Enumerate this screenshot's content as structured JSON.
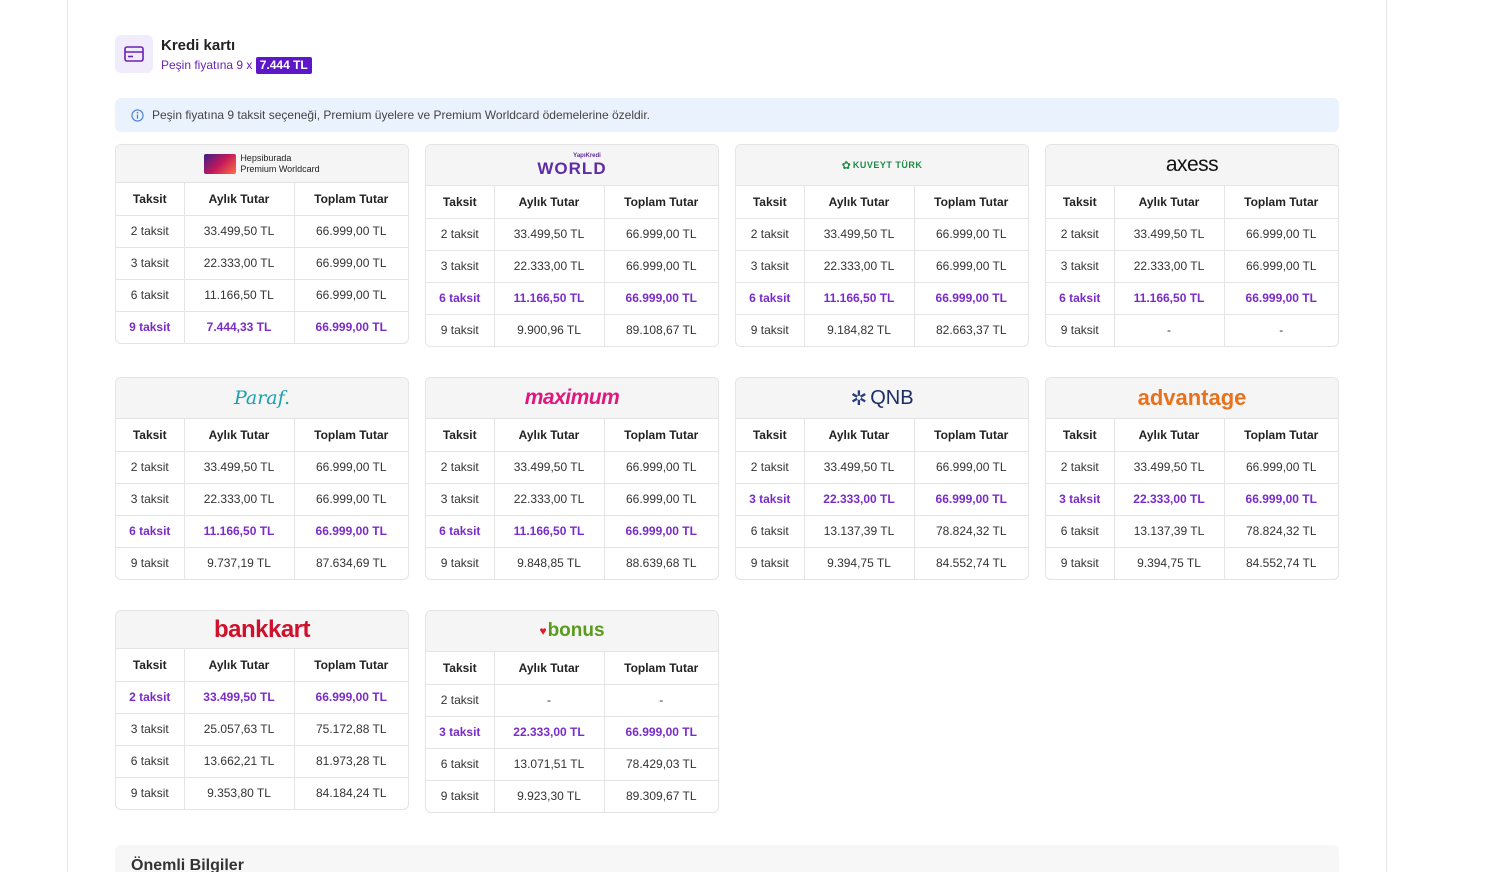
{
  "header": {
    "title": "Kredi kartı",
    "subtitle_prefix": "Peşin fiyatına 9 x",
    "subtitle_badge": "7.444 TL"
  },
  "info": {
    "text": "Peşin fiyatına 9 taksit seçeneği, Premium üyelere ve Premium Worldcard ödemelerine özeldir."
  },
  "columns": {
    "c1": "Taksit",
    "c2": "Aylık Tutar",
    "c3": "Toplam Tutar"
  },
  "cards": [
    {
      "name": "Hepsiburada Premium Worldcard",
      "logo_line1": "Hepsiburada",
      "logo_line2": "Premium Worldcard",
      "rows": [
        {
          "t": "2 taksit",
          "a": "33.499,50 TL",
          "s": "66.999,00 TL",
          "hl": false
        },
        {
          "t": "3 taksit",
          "a": "22.333,00 TL",
          "s": "66.999,00 TL",
          "hl": false
        },
        {
          "t": "6 taksit",
          "a": "11.166,50 TL",
          "s": "66.999,00 TL",
          "hl": false
        },
        {
          "t": "9 taksit",
          "a": "7.444,33 TL",
          "s": "66.999,00 TL",
          "hl": true
        }
      ]
    },
    {
      "name": "World",
      "logo_small": "YapıKredi",
      "logo_text": "WORLD",
      "rows": [
        {
          "t": "2 taksit",
          "a": "33.499,50 TL",
          "s": "66.999,00 TL",
          "hl": false
        },
        {
          "t": "3 taksit",
          "a": "22.333,00 TL",
          "s": "66.999,00 TL",
          "hl": false
        },
        {
          "t": "6 taksit",
          "a": "11.166,50 TL",
          "s": "66.999,00 TL",
          "hl": true
        },
        {
          "t": "9 taksit",
          "a": "9.900,96 TL",
          "s": "89.108,67 TL",
          "hl": false
        }
      ]
    },
    {
      "name": "KuveytTürk",
      "logo_text": "KUVEYT TÜRK",
      "rows": [
        {
          "t": "2 taksit",
          "a": "33.499,50 TL",
          "s": "66.999,00 TL",
          "hl": false
        },
        {
          "t": "3 taksit",
          "a": "22.333,00 TL",
          "s": "66.999,00 TL",
          "hl": false
        },
        {
          "t": "6 taksit",
          "a": "11.166,50 TL",
          "s": "66.999,00 TL",
          "hl": true
        },
        {
          "t": "9 taksit",
          "a": "9.184,82 TL",
          "s": "82.663,37 TL",
          "hl": false
        }
      ]
    },
    {
      "name": "Axess",
      "logo_text": "axess",
      "rows": [
        {
          "t": "2 taksit",
          "a": "33.499,50 TL",
          "s": "66.999,00 TL",
          "hl": false
        },
        {
          "t": "3 taksit",
          "a": "22.333,00 TL",
          "s": "66.999,00 TL",
          "hl": false
        },
        {
          "t": "6 taksit",
          "a": "11.166,50 TL",
          "s": "66.999,00 TL",
          "hl": true
        },
        {
          "t": "9 taksit",
          "a": "-",
          "s": "-",
          "hl": false
        }
      ]
    },
    {
      "name": "Paraf",
      "logo_text": "Paraf.",
      "rows": [
        {
          "t": "2 taksit",
          "a": "33.499,50 TL",
          "s": "66.999,00 TL",
          "hl": false
        },
        {
          "t": "3 taksit",
          "a": "22.333,00 TL",
          "s": "66.999,00 TL",
          "hl": false
        },
        {
          "t": "6 taksit",
          "a": "11.166,50 TL",
          "s": "66.999,00 TL",
          "hl": true
        },
        {
          "t": "9 taksit",
          "a": "9.737,19 TL",
          "s": "87.634,69 TL",
          "hl": false
        }
      ]
    },
    {
      "name": "Maximum",
      "logo_text": "maximum",
      "rows": [
        {
          "t": "2 taksit",
          "a": "33.499,50 TL",
          "s": "66.999,00 TL",
          "hl": false
        },
        {
          "t": "3 taksit",
          "a": "22.333,00 TL",
          "s": "66.999,00 TL",
          "hl": false
        },
        {
          "t": "6 taksit",
          "a": "11.166,50 TL",
          "s": "66.999,00 TL",
          "hl": true
        },
        {
          "t": "9 taksit",
          "a": "9.848,85 TL",
          "s": "88.639,68 TL",
          "hl": false
        }
      ]
    },
    {
      "name": "QNB",
      "logo_text": "QNB",
      "rows": [
        {
          "t": "2 taksit",
          "a": "33.499,50 TL",
          "s": "66.999,00 TL",
          "hl": false
        },
        {
          "t": "3 taksit",
          "a": "22.333,00 TL",
          "s": "66.999,00 TL",
          "hl": true
        },
        {
          "t": "6 taksit",
          "a": "13.137,39 TL",
          "s": "78.824,32 TL",
          "hl": false
        },
        {
          "t": "9 taksit",
          "a": "9.394,75 TL",
          "s": "84.552,74 TL",
          "hl": false
        }
      ]
    },
    {
      "name": "Advantage",
      "logo_text": "advantage",
      "rows": [
        {
          "t": "2 taksit",
          "a": "33.499,50 TL",
          "s": "66.999,00 TL",
          "hl": false
        },
        {
          "t": "3 taksit",
          "a": "22.333,00 TL",
          "s": "66.999,00 TL",
          "hl": true
        },
        {
          "t": "6 taksit",
          "a": "13.137,39 TL",
          "s": "78.824,32 TL",
          "hl": false
        },
        {
          "t": "9 taksit",
          "a": "9.394,75 TL",
          "s": "84.552,74 TL",
          "hl": false
        }
      ]
    },
    {
      "name": "Bankkart",
      "logo_text": "bankkart",
      "rows": [
        {
          "t": "2 taksit",
          "a": "33.499,50 TL",
          "s": "66.999,00 TL",
          "hl": true
        },
        {
          "t": "3 taksit",
          "a": "25.057,63 TL",
          "s": "75.172,88 TL",
          "hl": false
        },
        {
          "t": "6 taksit",
          "a": "13.662,21 TL",
          "s": "81.973,28 TL",
          "hl": false
        },
        {
          "t": "9 taksit",
          "a": "9.353,80 TL",
          "s": "84.184,24 TL",
          "hl": false
        }
      ]
    },
    {
      "name": "Bonus",
      "logo_text": "bonus",
      "rows": [
        {
          "t": "2 taksit",
          "a": "-",
          "s": "-",
          "hl": false
        },
        {
          "t": "3 taksit",
          "a": "22.333,00 TL",
          "s": "66.999,00 TL",
          "hl": true
        },
        {
          "t": "6 taksit",
          "a": "13.071,51 TL",
          "s": "78.429,03 TL",
          "hl": false
        },
        {
          "t": "9 taksit",
          "a": "9.923,30 TL",
          "s": "89.309,67 TL",
          "hl": false
        }
      ]
    }
  ],
  "bottom": {
    "title": "Önemli Bilgiler"
  }
}
